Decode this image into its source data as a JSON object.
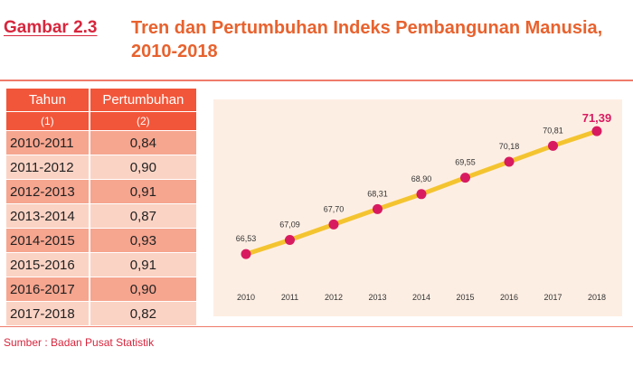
{
  "figure": {
    "label": "Gambar 2.3",
    "title": "Tren dan Pertumbuhan Indeks Pembangunan Manusia, 2010-2018"
  },
  "table": {
    "headers": [
      "Tahun",
      "Pertumbuhan"
    ],
    "subheaders": [
      "(1)",
      "(2)"
    ],
    "rows": [
      {
        "period": "2010-2011",
        "growth": "0,84"
      },
      {
        "period": "2011-2012",
        "growth": "0,90"
      },
      {
        "period": "2012-2013",
        "growth": "0,91"
      },
      {
        "period": "2013-2014",
        "growth": "0,87"
      },
      {
        "period": "2014-2015",
        "growth": "0,93"
      },
      {
        "period": "2015-2016",
        "growth": "0,91"
      },
      {
        "period": "2016-2017",
        "growth": "0,90"
      },
      {
        "period": "2017-2018",
        "growth": "0,82"
      }
    ]
  },
  "chart_data": {
    "type": "line",
    "title": "",
    "xlabel": "",
    "ylabel": "",
    "x": [
      "2010",
      "2011",
      "2012",
      "2013",
      "2014",
      "2015",
      "2016",
      "2017",
      "2018"
    ],
    "series": [
      {
        "values": [
          66.53,
          67.09,
          67.7,
          68.31,
          68.9,
          69.55,
          70.18,
          70.81,
          71.39
        ]
      }
    ],
    "data_labels": [
      "66,53",
      "67,09",
      "67,70",
      "68,31",
      "68,90",
      "69,55",
      "70,18",
      "70,81",
      "71,39"
    ],
    "ylim": [
      66,
      72
    ],
    "grid": false,
    "line_color": "#f4c430",
    "marker_color": "#d81b60",
    "highlight_label_color": "#d81b60"
  },
  "source": "Sumber : Badan Pusat Statistik"
}
